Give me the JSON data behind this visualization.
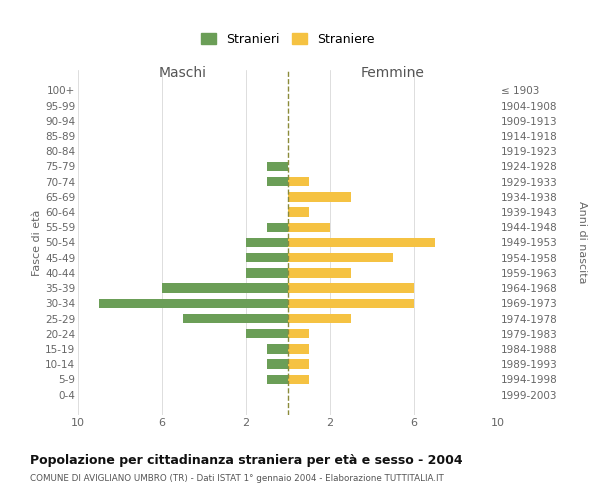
{
  "age_groups": [
    "100+",
    "95-99",
    "90-94",
    "85-89",
    "80-84",
    "75-79",
    "70-74",
    "65-69",
    "60-64",
    "55-59",
    "50-54",
    "45-49",
    "40-44",
    "35-39",
    "30-34",
    "25-29",
    "20-24",
    "15-19",
    "10-14",
    "5-9",
    "0-4"
  ],
  "birth_years": [
    "≤ 1903",
    "1904-1908",
    "1909-1913",
    "1914-1918",
    "1919-1923",
    "1924-1928",
    "1929-1933",
    "1934-1938",
    "1939-1943",
    "1944-1948",
    "1949-1953",
    "1954-1958",
    "1959-1963",
    "1964-1968",
    "1969-1973",
    "1974-1978",
    "1979-1983",
    "1984-1988",
    "1989-1993",
    "1994-1998",
    "1999-2003"
  ],
  "maschi": [
    0,
    0,
    0,
    0,
    0,
    1,
    1,
    0,
    0,
    1,
    2,
    2,
    2,
    6,
    9,
    5,
    2,
    1,
    1,
    1,
    0
  ],
  "femmine": [
    0,
    0,
    0,
    0,
    0,
    0,
    1,
    3,
    1,
    2,
    7,
    5,
    3,
    6,
    6,
    3,
    1,
    1,
    1,
    1,
    0
  ],
  "maschi_color": "#6b9e57",
  "femmine_color": "#f5c242",
  "center_line_color": "#8b8b3a",
  "title": "Popolazione per cittadinanza straniera per età e sesso - 2004",
  "subtitle": "COMUNE DI AVIGLIANO UMBRO (TR) - Dati ISTAT 1° gennaio 2004 - Elaborazione TUTTITALIA.IT",
  "ylabel_left": "Fasce di età",
  "ylabel_right": "Anni di nascita",
  "xlabel_left": "Maschi",
  "xlabel_right": "Femmine",
  "legend_maschi": "Stranieri",
  "legend_femmine": "Straniere",
  "xlim": 10,
  "bg_color": "#ffffff",
  "grid_color": "#d0d0d0"
}
